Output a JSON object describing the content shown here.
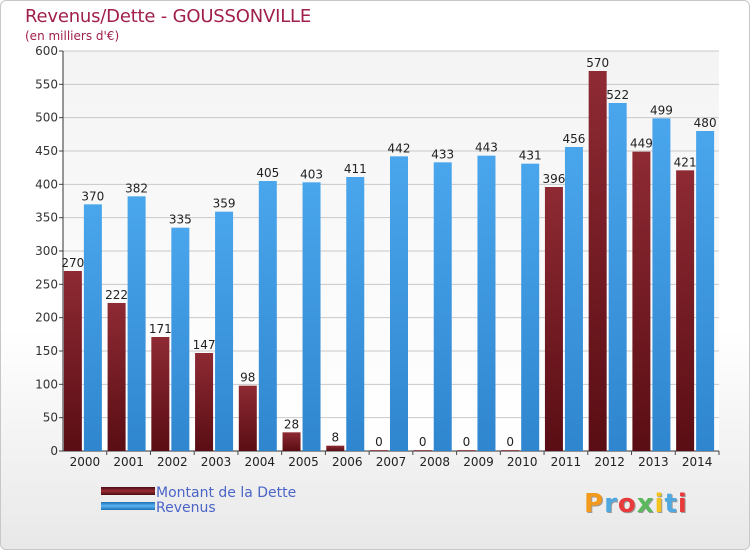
{
  "title": "Revenus/Dette - GOUSSONVILLE",
  "subtitle": "(en milliers d'€)",
  "logo_text": "Proxiti",
  "chart_data": {
    "type": "bar",
    "categories": [
      "2000",
      "2001",
      "2002",
      "2003",
      "2004",
      "2005",
      "2006",
      "2007",
      "2008",
      "2009",
      "2010",
      "2011",
      "2012",
      "2013",
      "2014"
    ],
    "series": [
      {
        "name": "Montant de la Dette",
        "color": "#8b2530",
        "values": [
          270,
          222,
          171,
          147,
          98,
          28,
          8,
          0,
          0,
          0,
          0,
          396,
          570,
          449,
          421
        ],
        "labels": [
          "270",
          "222",
          "171",
          "147",
          "98",
          "28",
          "8",
          "0",
          "0",
          "0",
          "0",
          "396",
          "570",
          "449",
          "421"
        ]
      },
      {
        "name": "Revenus",
        "color": "#3c9ae3",
        "values": [
          370,
          382,
          335,
          359,
          405,
          403,
          411,
          442,
          433,
          443,
          431,
          456,
          522,
          499,
          480
        ],
        "labels": [
          "370",
          "382",
          "335",
          "359",
          "405",
          "403",
          "411",
          "442",
          "433",
          "443",
          "431",
          "456",
          "522",
          "499",
          "480"
        ]
      }
    ],
    "ylim": [
      0,
      600
    ],
    "yticks": [
      0,
      50,
      100,
      150,
      200,
      250,
      300,
      350,
      400,
      450,
      500,
      550,
      600
    ],
    "grid": true,
    "legend": "bottom-left"
  }
}
